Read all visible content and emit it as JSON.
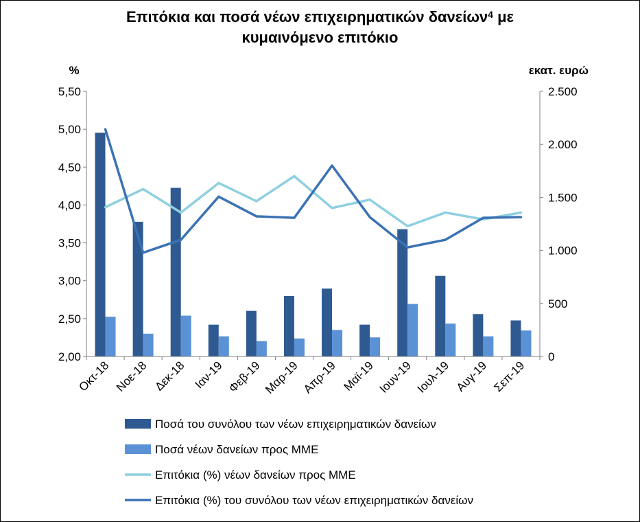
{
  "chart_data": {
    "type": "bar+line",
    "title_line1": "Επιτόκια και ποσά νέων επιχειρηματικών δανείων",
    "title_sup": "4",
    "title_tail": " με",
    "title_line2": "κυμαινόμενο επιτόκιο",
    "left_axis": {
      "unit": "%",
      "range": [
        2.0,
        5.5
      ],
      "ticks": [
        "2,00",
        "2,50",
        "3,00",
        "3,50",
        "4,00",
        "4,50",
        "5,00",
        "5,50"
      ],
      "tick_values": [
        2.0,
        2.5,
        3.0,
        3.5,
        4.0,
        4.5,
        5.0,
        5.5
      ]
    },
    "right_axis": {
      "unit": "εκατ. ευρώ",
      "range": [
        0,
        2500
      ],
      "ticks": [
        "0",
        "500",
        "1.000",
        "1.500",
        "2.000",
        "2.500"
      ],
      "tick_values": [
        0,
        500,
        1000,
        1500,
        2000,
        2500
      ]
    },
    "categories": [
      "Οκτ-18",
      "Νοε-18",
      "Δεκ-18",
      "Ιαν-19",
      "Φεβ-19",
      "Μαρ-19",
      "Απρ-19",
      "Μαϊ-19",
      "Ιουν-19",
      "Ιουλ-19",
      "Αυγ-19",
      "Σεπ-19"
    ],
    "series": [
      {
        "name": "Ποσά του συνόλου των νέων επιχειρηματικών δανείων",
        "kind": "bar",
        "axis": "right",
        "color": "#2E5A91",
        "values": [
          2110,
          1270,
          1590,
          300,
          430,
          570,
          640,
          300,
          1200,
          760,
          400,
          340
        ]
      },
      {
        "name": "Ποσά νέων δανείων προς ΜΜΕ",
        "kind": "bar",
        "axis": "right",
        "color": "#5B92D6",
        "values": [
          375,
          215,
          385,
          190,
          145,
          170,
          250,
          180,
          495,
          310,
          190,
          245
        ]
      },
      {
        "name": "Επιτόκια (%) νέων δανείων προς ΜΜΕ",
        "kind": "line",
        "axis": "left",
        "color": "#8FCFE0",
        "values": [
          3.97,
          4.21,
          3.9,
          4.29,
          4.05,
          4.38,
          3.96,
          4.07,
          3.72,
          3.9,
          3.81,
          3.9
        ]
      },
      {
        "name": "Επιτόκια (%) του συνόλου των νέων επιχειρηματικών δανείων",
        "kind": "line",
        "axis": "left",
        "color": "#3B72B4",
        "values": [
          5.0,
          3.37,
          3.54,
          4.11,
          3.85,
          3.83,
          4.52,
          3.84,
          3.44,
          3.54,
          3.83,
          3.84
        ]
      }
    ],
    "legend_position": "bottom",
    "grid": false
  }
}
